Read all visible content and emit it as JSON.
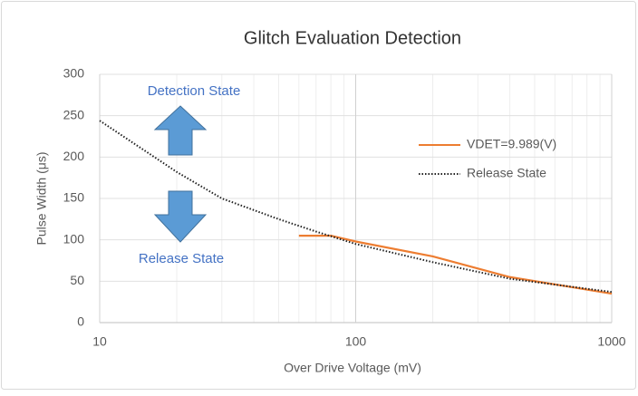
{
  "chart_data": {
    "type": "line",
    "title": "Glitch Evaluation Detection",
    "x_label": "Over Drive Voltage (mV)",
    "y_label": "Pulse Width (μs)",
    "xlog": true,
    "xlim": [
      10,
      1000
    ],
    "xticks": [
      10,
      100,
      1000
    ],
    "ylim": [
      0,
      300
    ],
    "yticks": [
      0,
      50,
      100,
      150,
      200,
      250,
      300
    ],
    "grid": true,
    "legend": "right",
    "series": [
      {
        "name": "VDET=9.989(V)",
        "color": "#ed7d31",
        "style": "solid",
        "x": [
          60,
          80,
          100,
          200,
          400,
          1000
        ],
        "values": [
          105,
          105,
          98,
          80,
          55,
          35
        ]
      },
      {
        "name": "Release State",
        "color": "#222222",
        "style": "dotted",
        "x": [
          10,
          20,
          30,
          50,
          70,
          100,
          200,
          400,
          1000
        ],
        "values": [
          244,
          182,
          150,
          125,
          110,
          95,
          73,
          53,
          37
        ]
      }
    ],
    "annotations": [
      {
        "text": "Detection State"
      },
      {
        "text": "Release State"
      }
    ]
  }
}
